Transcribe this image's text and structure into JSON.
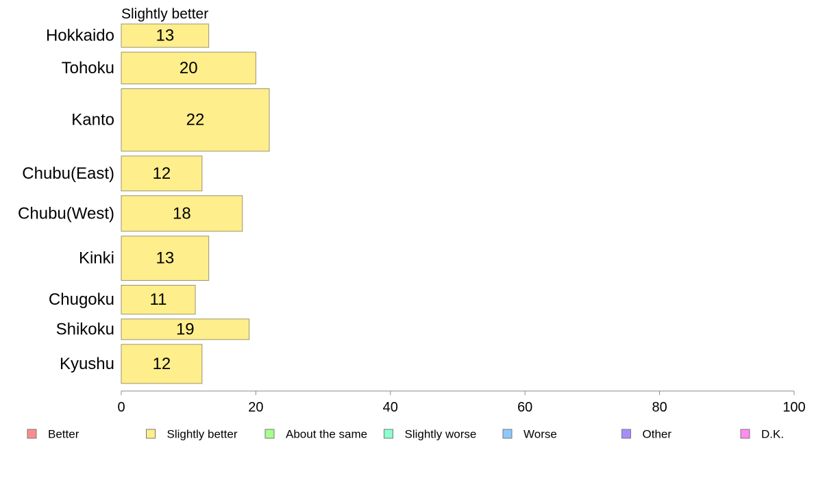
{
  "chart_data": {
    "type": "bar",
    "orientation": "horizontal",
    "title": "Slightly better",
    "xlabel": "",
    "ylabel": "",
    "xlim": [
      0,
      100
    ],
    "xticks": [
      0,
      20,
      40,
      60,
      80,
      100
    ],
    "grid": false,
    "categories": [
      "Hokkaido",
      "Tohoku",
      "Kanto",
      "Chubu(East)",
      "Chubu(West)",
      "Kinki",
      "Chugoku",
      "Shikoku",
      "Kyushu"
    ],
    "category_weights": [
      0.67,
      0.91,
      1.79,
      1.0,
      1.02,
      1.27,
      0.83,
      0.59,
      1.12
    ],
    "series": [
      {
        "name": "Slightly better",
        "color": "#ffee8c",
        "values": [
          13,
          20,
          22,
          12,
          18,
          13,
          11,
          19,
          12
        ]
      }
    ],
    "legend": {
      "placement": "bottom",
      "entries": [
        {
          "label": "Better",
          "color": "#ff8c8c"
        },
        {
          "label": "Slightly better",
          "color": "#ffee8c"
        },
        {
          "label": "About the same",
          "color": "#a6ff8c"
        },
        {
          "label": "Slightly worse",
          "color": "#8cffce"
        },
        {
          "label": "Worse",
          "color": "#8cc8ff"
        },
        {
          "label": "Other",
          "color": "#a88cff"
        },
        {
          "label": "D.K.",
          "color": "#ff8cee"
        }
      ]
    }
  }
}
